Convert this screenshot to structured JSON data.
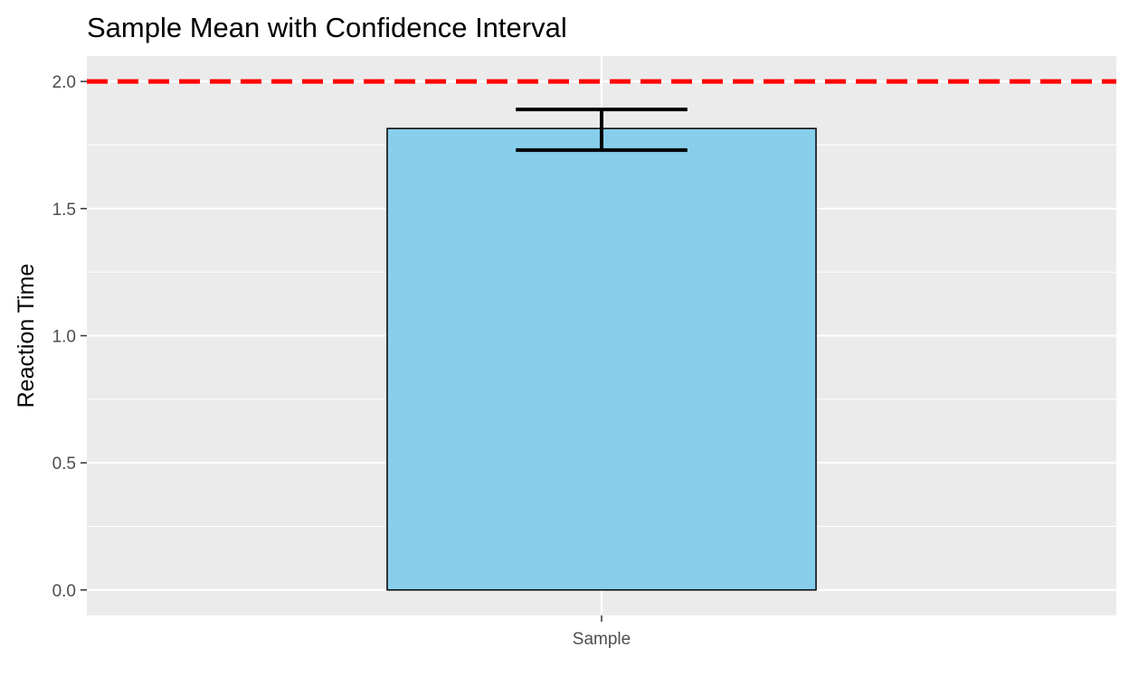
{
  "chart_data": {
    "type": "bar",
    "title": "Sample Mean with Confidence Interval",
    "xlabel": "",
    "ylabel": "Reaction Time",
    "categories": [
      "Sample"
    ],
    "values": [
      1.815
    ],
    "error_bars": [
      {
        "lower": 1.73,
        "upper": 1.89
      }
    ],
    "reference_line": {
      "y": 2.0,
      "style": "dashed",
      "color": "#ff0000"
    },
    "ylim": [
      -0.1,
      2.1
    ],
    "yticks": [
      0.0,
      0.5,
      1.0,
      1.5,
      2.0
    ],
    "ytick_labels": [
      "0.0",
      "0.5",
      "1.0",
      "1.5",
      "2.0"
    ],
    "grid": true,
    "legend": "none",
    "colors": {
      "bar_fill": "#87ceeb",
      "bar_outline": "#000000",
      "panel_background": "#ebebeb",
      "grid_major": "#ffffff",
      "error_bar": "#000000"
    }
  }
}
